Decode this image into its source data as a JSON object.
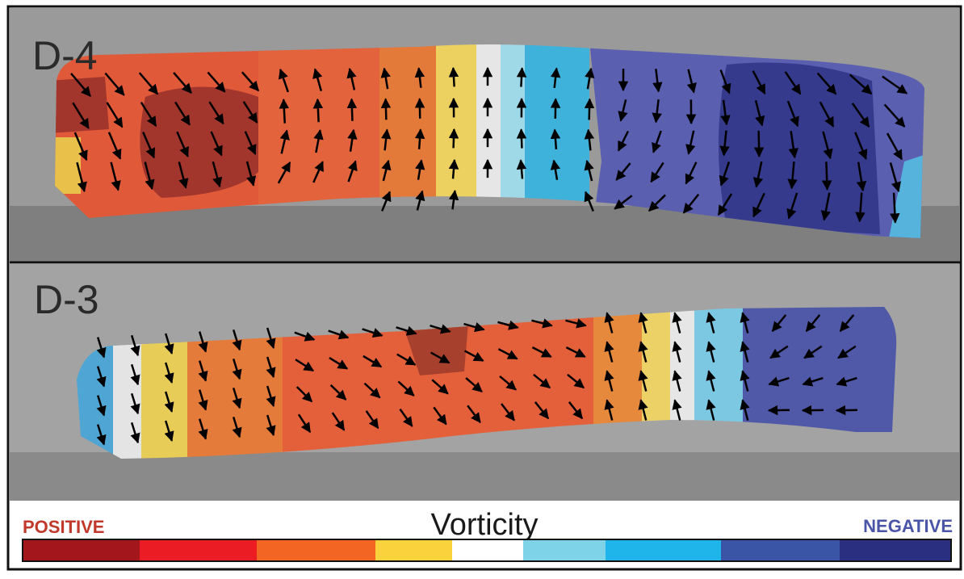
{
  "panels": [
    {
      "label": "D-4"
    },
    {
      "label": "D-3"
    }
  ],
  "legend": {
    "title": "Vorticity",
    "positive": "POSITIVE",
    "negative": "NEGATIVE"
  }
}
